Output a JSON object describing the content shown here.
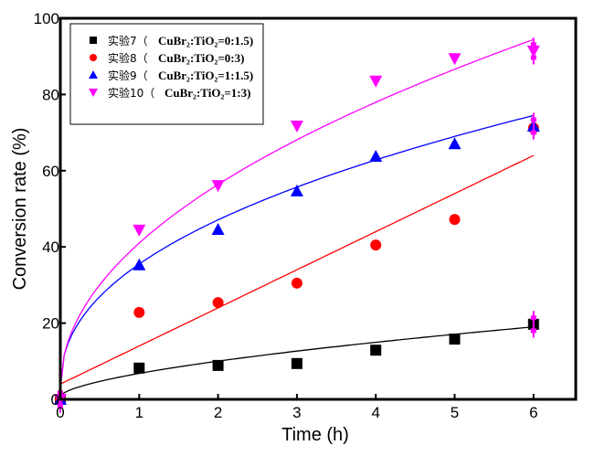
{
  "chart_data": {
    "type": "scatter",
    "title": "",
    "xlabel": "Time (h)",
    "ylabel": "Conversion rate (%)",
    "xlim": [
      0,
      6.5
    ],
    "ylim": [
      0,
      100
    ],
    "xticks": [
      0,
      1,
      2,
      3,
      4,
      5,
      6
    ],
    "yticks": [
      0,
      20,
      40,
      60,
      80,
      100
    ],
    "grid": false,
    "legend_position": "top-left",
    "x": [
      0,
      1,
      2,
      3,
      4,
      5,
      6
    ],
    "series": [
      {
        "name": "实验7（CuBr2:TiO2=0:1.5）",
        "legend_prefix": "实验7（",
        "legend_formula": "CuBr₂:TiO₂=0:1.5)",
        "marker": "square",
        "color": "#000000",
        "values": [
          0,
          8.2,
          8.9,
          9.4,
          12.9,
          15.8,
          19.7
        ],
        "fit": "power",
        "fit_params": {
          "a": 6.0,
          "b": 0.62,
          "c": 0.8
        }
      },
      {
        "name": "实验8（CuBr2:TiO2=0:3）",
        "legend_prefix": "实验8（",
        "legend_formula": "CuBr₂:TiO₂=0:3)",
        "marker": "circle",
        "color": "#ff0000",
        "values": [
          0,
          22.8,
          25.4,
          30.5,
          40.5,
          47.2,
          71.2
        ],
        "fit": "linear",
        "fit_params": {
          "a": 10.0,
          "b": 4.0
        }
      },
      {
        "name": "实验9（CuBr2:TiO2=1:1.5）",
        "legend_prefix": "实验9（",
        "legend_formula": "CuBr₂:TiO₂=1:1.5)",
        "marker": "triangle-up",
        "color": "#0000ff",
        "values": [
          0,
          35.3,
          44.6,
          54.7,
          63.8,
          67.1,
          71.7
        ],
        "fit": "power",
        "fit_params": {
          "a": 32.5,
          "b": 0.44,
          "c": 3.0
        }
      },
      {
        "name": "实验10（CuBr2:TiO2=1:3）",
        "legend_prefix": "实验10（",
        "legend_formula": "CuBr₂:TiO₂=1:3)",
        "marker": "triangle-down",
        "color": "#ff00ff",
        "values": [
          0,
          44.4,
          56.1,
          71.7,
          83.5,
          89.4,
          91.4
        ],
        "fit": "power",
        "fit_params": {
          "a": 38.0,
          "b": 0.49,
          "c": 3.0
        },
        "error_at_last": 3.5
      }
    ]
  }
}
